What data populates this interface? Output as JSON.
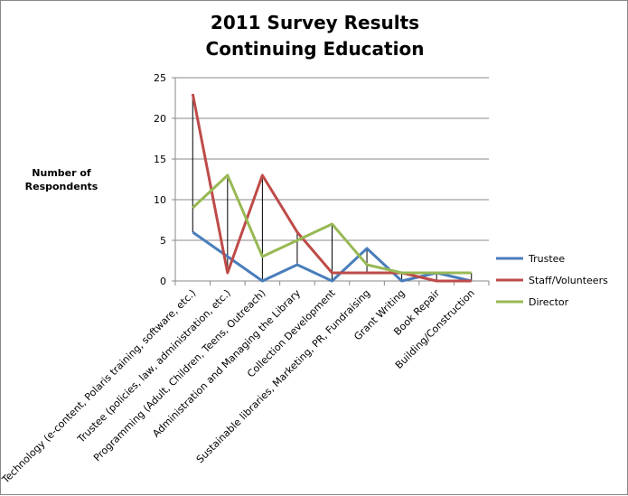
{
  "chart_data": {
    "type": "line",
    "title": [
      "2011 Survey Results",
      "Continuing Education"
    ],
    "ylabel": "Number of Respondents",
    "xlabel": "",
    "ylim": [
      0,
      25
    ],
    "yticks": [
      0,
      5,
      10,
      15,
      20,
      25
    ],
    "grid": true,
    "legend_position": "right",
    "categories": [
      "Technology (e-content, Polaris training, software, etc.)",
      "Trustee (policies, law, administration, etc.)",
      "Programming (Adult, Children, Teens, Outreach)",
      "Administration and Managing the Library",
      "Collection Development",
      "Sustainable libraries, Marketing, PR, Fundraising",
      "Grant Writing",
      "Book Repair",
      "Building/Construction"
    ],
    "series": [
      {
        "name": "Trustee",
        "color": "#4a7ebb",
        "values": [
          6,
          3,
          0,
          2,
          0,
          4,
          0,
          1,
          0
        ]
      },
      {
        "name": "Staff/Volunteers",
        "color": "#be4b48",
        "values": [
          23,
          1,
          13,
          6,
          1,
          1,
          1,
          0,
          0
        ]
      },
      {
        "name": "Director",
        "color": "#98b954",
        "values": [
          9,
          13,
          3,
          5,
          7,
          2,
          1,
          1,
          1
        ]
      }
    ],
    "high_low_lines": true
  }
}
